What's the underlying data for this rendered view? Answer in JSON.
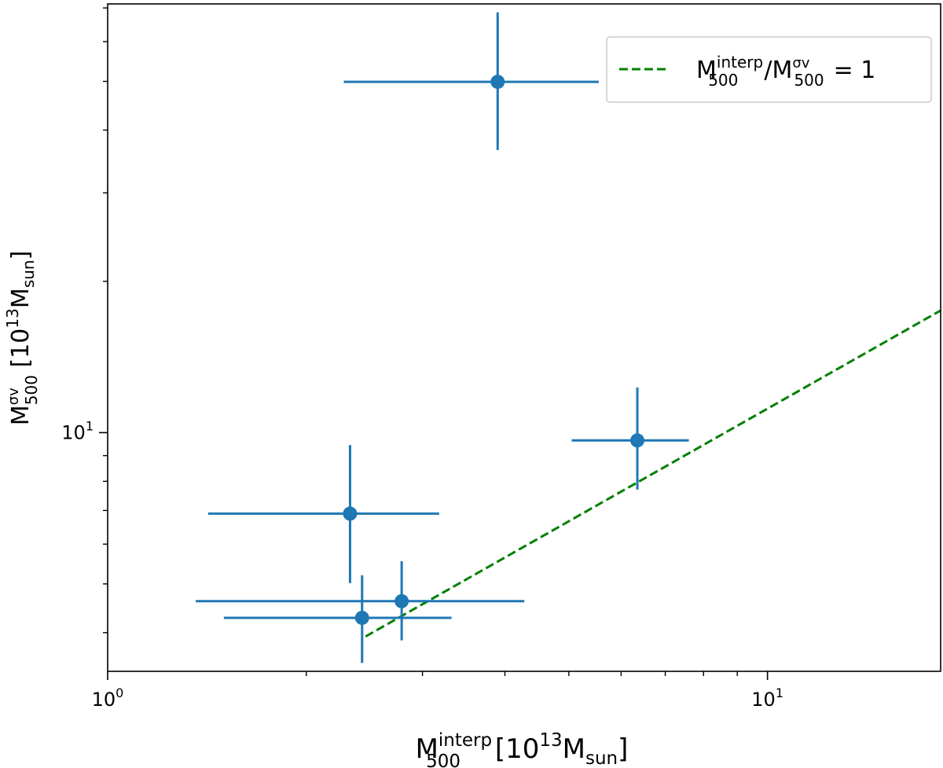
{
  "chart_data": {
    "type": "scatter",
    "xlabel": {
      "main": "M",
      "sup": "interp",
      "sub": "500",
      "unit_open": " [10",
      "unit_exp": "13",
      "unit_M": "M",
      "unit_sub": "sun",
      "unit_close": "]"
    },
    "ylabel": {
      "main": "M",
      "sup": "σv",
      "sub": "500",
      "unit_open": " [10",
      "unit_exp": "13",
      "unit_M": "M",
      "unit_sub": "sun",
      "unit_close": "]"
    },
    "x_scale": "log",
    "y_scale": "log",
    "xlim": [
      1,
      18.3
    ],
    "ylim": [
      3.35,
      71.3
    ],
    "x_ticks": [
      {
        "value": 1,
        "base": "10",
        "exp": "0"
      },
      {
        "value": 10,
        "base": "10",
        "exp": "1"
      }
    ],
    "y_ticks": [
      {
        "value": 10,
        "base": "10",
        "exp": "1"
      }
    ],
    "grid": false,
    "legend_position": "top-right",
    "legend": {
      "main1": "M",
      "sup1": "interp",
      "sub1": "500",
      "slash": "/",
      "main2": "M",
      "sup2": "σv",
      "sub2": "500",
      "rhs": "= 1"
    },
    "series": [
      {
        "type": "errorbar",
        "color": "#1f77b4",
        "points": [
          {
            "x": 3.9,
            "y": 49.9,
            "xerr": [
              2.28,
              5.55
            ],
            "yerr": [
              36.5,
              68.6
            ]
          },
          {
            "x": 6.35,
            "y": 9.65,
            "xerr": [
              5.05,
              7.6
            ],
            "yerr": [
              7.7,
              12.3
            ]
          },
          {
            "x": 2.33,
            "y": 6.9,
            "xerr": [
              1.42,
              3.18
            ],
            "yerr": [
              5.02,
              9.45
            ]
          },
          {
            "x": 2.79,
            "y": 4.62,
            "xerr": [
              1.36,
              4.28
            ],
            "yerr": [
              3.86,
              5.55
            ]
          },
          {
            "x": 2.43,
            "y": 4.28,
            "xerr": [
              1.5,
              3.32
            ],
            "yerr": [
              3.48,
              5.2
            ]
          }
        ]
      },
      {
        "type": "line",
        "style": "dashed",
        "color": "#008000",
        "x": [
          2.46,
          18.3
        ],
        "y": [
          3.93,
          17.5
        ]
      }
    ]
  }
}
